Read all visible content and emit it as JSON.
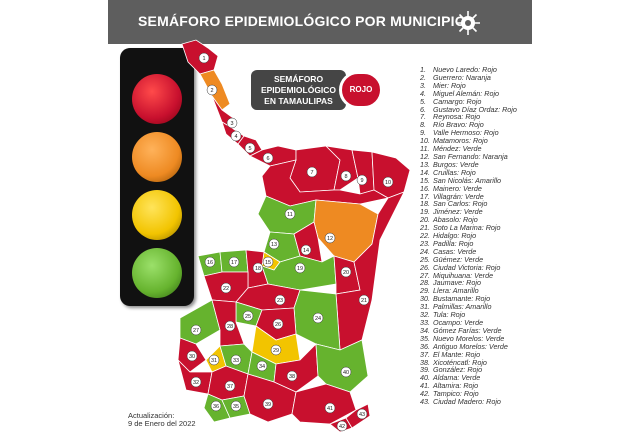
{
  "header": {
    "title": "SEMÁFORO EPIDEMIOLÓGICO POR MUNICIPIO",
    "icon": "virus-icon"
  },
  "info": {
    "line1": "SEMÁFORO",
    "line2": "EPIDEMIOLÓGICO",
    "line3": "EN TAMAULIPAS",
    "status": "ROJO"
  },
  "colors": {
    "rojo": "#c8102e",
    "naranja": "#ee8a22",
    "amarillo": "#f2c400",
    "verde": "#66b32e"
  },
  "traffic_light": [
    "#c8102e",
    "#ee8a22",
    "#f2c400",
    "#66b32e"
  ],
  "update": {
    "line1": "Actualización:",
    "line2": "9 de Enero del 2022"
  },
  "legend": [
    {
      "n": "1.",
      "t": "Nuevo Laredo: Rojo"
    },
    {
      "n": "2.",
      "t": "Guerrero: Naranja"
    },
    {
      "n": "3.",
      "t": "Mier: Rojo"
    },
    {
      "n": "4.",
      "t": "Miguel Alemán: Rojo"
    },
    {
      "n": "5.",
      "t": "Camargo: Rojo"
    },
    {
      "n": "6.",
      "t": "Gustavo Díaz Ordaz: Rojo"
    },
    {
      "n": "7.",
      "t": "Reynosa: Rojo"
    },
    {
      "n": "8.",
      "t": "Río Bravo: Rojo"
    },
    {
      "n": "9.",
      "t": "Valle Hermoso: Rojo"
    },
    {
      "n": "10.",
      "t": "Matamoros: Rojo"
    },
    {
      "n": "11.",
      "t": "Méndez: Verde"
    },
    {
      "n": "12.",
      "t": "San Fernando: Naranja"
    },
    {
      "n": "13.",
      "t": "Burgos: Verde"
    },
    {
      "n": "14.",
      "t": "Cruillas: Rojo"
    },
    {
      "n": "15.",
      "t": "San Nicolás: Amarillo"
    },
    {
      "n": "16.",
      "t": "Mainero: Verde"
    },
    {
      "n": "17.",
      "t": "Villagrán: Verde"
    },
    {
      "n": "18.",
      "t": "San Carlos: Rojo"
    },
    {
      "n": "19.",
      "t": "Jiménez: Verde"
    },
    {
      "n": "20.",
      "t": "Abasolo: Rojo"
    },
    {
      "n": "21.",
      "t": "Soto La Marina: Rojo"
    },
    {
      "n": "22.",
      "t": "Hidalgo: Rojo"
    },
    {
      "n": "23.",
      "t": "Padilla: Rojo"
    },
    {
      "n": "24.",
      "t": "Casas: Verde"
    },
    {
      "n": "25.",
      "t": "Güémez: Verde"
    },
    {
      "n": "26.",
      "t": "Ciudad Victoria: Rojo"
    },
    {
      "n": "27.",
      "t": "Miquihuana: Verde"
    },
    {
      "n": "28.",
      "t": "Jaumave: Rojo"
    },
    {
      "n": "29.",
      "t": "Llera: Amarillo"
    },
    {
      "n": "30.",
      "t": "Bustamante: Rojo"
    },
    {
      "n": "31.",
      "t": "Palmillas: Amarillo"
    },
    {
      "n": "32.",
      "t": "Tula: Rojo"
    },
    {
      "n": "33.",
      "t": "Ocampo: Verde"
    },
    {
      "n": "34.",
      "t": "Gómez Farías: Verde"
    },
    {
      "n": "35.",
      "t": "Nuevo Morelos: Verde"
    },
    {
      "n": "36.",
      "t": "Antiguo Morelos: Verde"
    },
    {
      "n": "37.",
      "t": "El Mante: Rojo"
    },
    {
      "n": "38.",
      "t": "Xicoténcatl: Rojo"
    },
    {
      "n": "39.",
      "t": "González: Rojo"
    },
    {
      "n": "40.",
      "t": "Aldama: Verde"
    },
    {
      "n": "41.",
      "t": "Altamira: Rojo"
    },
    {
      "n": "42.",
      "t": "Tampico: Rojo"
    },
    {
      "n": "43.",
      "t": "Ciudad Madero: Rojo"
    }
  ],
  "map_labels": [
    "1",
    "2",
    "3",
    "4",
    "5",
    "6",
    "7",
    "8",
    "9",
    "10",
    "11",
    "12",
    "13",
    "14",
    "15",
    "16",
    "17",
    "18",
    "19",
    "20",
    "21",
    "22",
    "23",
    "24",
    "25",
    "26",
    "27",
    "28",
    "29",
    "30",
    "31",
    "32",
    "33",
    "34",
    "35",
    "36",
    "37",
    "38",
    "39",
    "40",
    "41",
    "42",
    "43"
  ]
}
